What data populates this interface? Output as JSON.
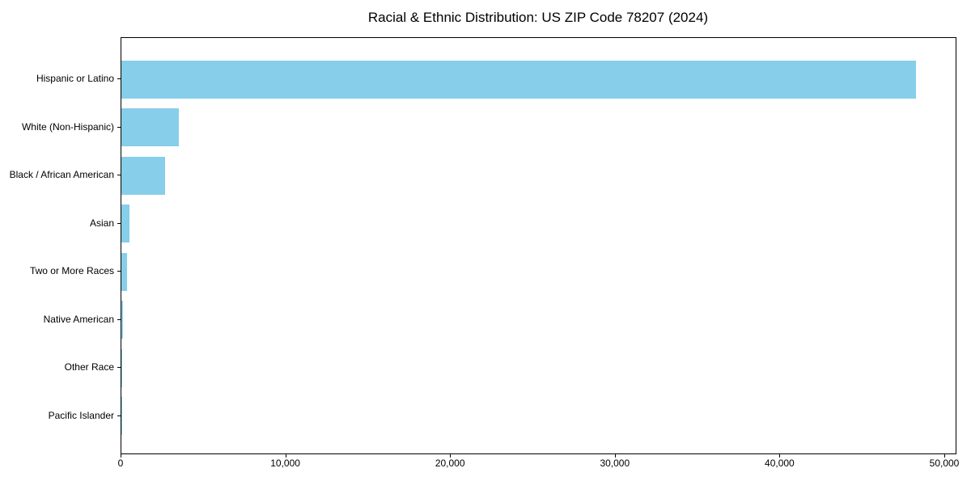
{
  "title": "Racial & Ethnic Distribution: US ZIP Code 78207 (2024)",
  "chart_data": {
    "type": "bar",
    "orientation": "horizontal",
    "title": "Racial & Ethnic Distribution: US ZIP Code 78207 (2024)",
    "categories": [
      "Hispanic or Latino",
      "White (Non-Hispanic)",
      "Black / African American",
      "Asian",
      "Two or More Races",
      "Native American",
      "Other Race",
      "Pacific Islander"
    ],
    "values": [
      48250,
      3490,
      2670,
      490,
      360,
      75,
      50,
      25
    ],
    "xlabel": "",
    "ylabel": "",
    "xlim": [
      0,
      50000
    ],
    "x_ticks": [
      0,
      10000,
      20000,
      30000,
      40000,
      50000
    ],
    "x_tick_labels": [
      "0",
      "10,000",
      "20,000",
      "30,000",
      "40,000",
      "50,000"
    ],
    "bar_color": "#87CEEB",
    "axis_color": "#000000",
    "grid": false,
    "legend": null
  }
}
